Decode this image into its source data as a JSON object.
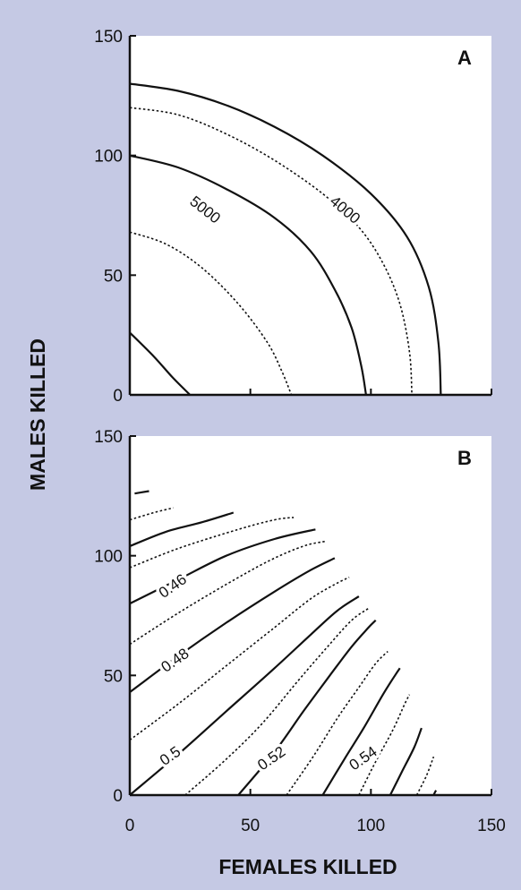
{
  "axis": {
    "xlabel": "FEMALES KILLED",
    "ylabel": "MALES KILLED"
  },
  "colors": {
    "background": "#c5c9e4",
    "plot_area": "#ffffff",
    "line": "#111111"
  },
  "chart_data": [
    {
      "type": "contour",
      "panel_label": "A",
      "xlim": [
        0,
        150
      ],
      "ylim": [
        0,
        150
      ],
      "xticks": [],
      "yticks": [
        "0",
        "50",
        "100",
        "150"
      ],
      "contour_labels": [
        {
          "text": "5000",
          "x": 31,
          "y": 77
        },
        {
          "text": "4000",
          "x": 89,
          "y": 77
        }
      ],
      "contours": [
        {
          "style": "solid",
          "points": [
            [
              0,
              130
            ],
            [
              20,
              127
            ],
            [
              40,
              121
            ],
            [
              60,
              112
            ],
            [
              80,
              100
            ],
            [
              100,
              84
            ],
            [
              115,
              66
            ],
            [
              124,
              45
            ],
            [
              128,
              22
            ],
            [
              129,
              0
            ]
          ]
        },
        {
          "style": "dotted",
          "points": [
            [
              0,
              120
            ],
            [
              20,
              117
            ],
            [
              40,
              109
            ],
            [
              60,
              98
            ],
            [
              80,
              84
            ],
            [
              95,
              70
            ],
            [
              105,
              55
            ],
            [
              112,
              38
            ],
            [
              116,
              18
            ],
            [
              117,
              0
            ]
          ]
        },
        {
          "style": "solid",
          "points": [
            [
              0,
              100
            ],
            [
              20,
              95
            ],
            [
              40,
              86
            ],
            [
              60,
              74
            ],
            [
              75,
              60
            ],
            [
              85,
              44
            ],
            [
              92,
              28
            ],
            [
              96,
              12
            ],
            [
              98,
              0
            ]
          ]
        },
        {
          "style": "dotted",
          "points": [
            [
              0,
              68
            ],
            [
              15,
              63
            ],
            [
              30,
              53
            ],
            [
              45,
              38
            ],
            [
              57,
              22
            ],
            [
              63,
              10
            ],
            [
              67,
              0
            ]
          ]
        },
        {
          "style": "solid",
          "points": [
            [
              0,
              26
            ],
            [
              10,
              16
            ],
            [
              18,
              7
            ],
            [
              25,
              0
            ]
          ]
        }
      ]
    },
    {
      "type": "contour",
      "panel_label": "B",
      "xlim": [
        0,
        150
      ],
      "ylim": [
        0,
        150
      ],
      "xticks": [
        "0",
        "50",
        "100",
        "150"
      ],
      "yticks": [
        "0",
        "50",
        "100",
        "150"
      ],
      "contour_labels": [
        {
          "text": "0.46",
          "x": 18,
          "y": 87
        },
        {
          "text": "0.48",
          "x": 19,
          "y": 56
        },
        {
          "text": "0.5",
          "x": 17,
          "y": 16
        },
        {
          "text": "0.52",
          "x": 59,
          "y": 15
        },
        {
          "text": "0.54",
          "x": 97,
          "y": 15
        }
      ],
      "contours": [
        {
          "style": "solid",
          "points": [
            [
              2,
              126
            ],
            [
              8,
              127
            ]
          ]
        },
        {
          "style": "dotted",
          "points": [
            [
              0,
              115
            ],
            [
              10,
              118
            ],
            [
              18,
              120
            ]
          ]
        },
        {
          "style": "solid",
          "points": [
            [
              0,
              104
            ],
            [
              15,
              110
            ],
            [
              30,
              114
            ],
            [
              43,
              118
            ]
          ]
        },
        {
          "style": "dotted",
          "points": [
            [
              0,
              95
            ],
            [
              20,
              103
            ],
            [
              45,
              111
            ],
            [
              60,
              115
            ],
            [
              68,
              116
            ]
          ]
        },
        {
          "style": "solid",
          "points": [
            [
              0,
              80
            ],
            [
              20,
              90
            ],
            [
              40,
              100
            ],
            [
              60,
              107
            ],
            [
              77,
              111
            ]
          ]
        },
        {
          "style": "dotted",
          "points": [
            [
              0,
              63
            ],
            [
              20,
              76
            ],
            [
              40,
              88
            ],
            [
              58,
              98
            ],
            [
              72,
              104
            ],
            [
              81,
              106
            ]
          ]
        },
        {
          "style": "solid",
          "points": [
            [
              0,
              43
            ],
            [
              20,
              58
            ],
            [
              40,
              72
            ],
            [
              60,
              85
            ],
            [
              75,
              94
            ],
            [
              85,
              99
            ]
          ]
        },
        {
          "style": "dotted",
          "points": [
            [
              0,
              23
            ],
            [
              20,
              38
            ],
            [
              40,
              54
            ],
            [
              60,
              70
            ],
            [
              75,
              82
            ],
            [
              85,
              88
            ],
            [
              91,
              91
            ]
          ]
        },
        {
          "style": "solid",
          "points": [
            [
              0,
              0
            ],
            [
              20,
              17
            ],
            [
              40,
              35
            ],
            [
              60,
              53
            ],
            [
              75,
              67
            ],
            [
              86,
              77
            ],
            [
              95,
              83
            ]
          ]
        },
        {
          "style": "dotted",
          "points": [
            [
              23,
              0
            ],
            [
              40,
              15
            ],
            [
              55,
              30
            ],
            [
              70,
              48
            ],
            [
              82,
              62
            ],
            [
              92,
              73
            ],
            [
              99,
              78
            ]
          ]
        },
        {
          "style": "solid",
          "points": [
            [
              45,
              0
            ],
            [
              60,
              18
            ],
            [
              72,
              35
            ],
            [
              83,
              50
            ],
            [
              92,
              62
            ],
            [
              99,
              70
            ],
            [
              102,
              73
            ]
          ]
        },
        {
          "style": "dotted",
          "points": [
            [
              65,
              0
            ],
            [
              76,
              16
            ],
            [
              86,
              32
            ],
            [
              95,
              45
            ],
            [
              102,
              55
            ],
            [
              107,
              60
            ]
          ]
        },
        {
          "style": "solid",
          "points": [
            [
              80,
              0
            ],
            [
              89,
              15
            ],
            [
              97,
              28
            ],
            [
              105,
              42
            ],
            [
              110,
              50
            ],
            [
              112,
              53
            ]
          ]
        },
        {
          "style": "dotted",
          "points": [
            [
              95,
              0
            ],
            [
              102,
              14
            ],
            [
              109,
              27
            ],
            [
              114,
              38
            ],
            [
              116,
              42
            ]
          ]
        },
        {
          "style": "solid",
          "points": [
            [
              108,
              0
            ],
            [
              113,
              10
            ],
            [
              118,
              20
            ],
            [
              121,
              28
            ]
          ]
        },
        {
          "style": "dotted",
          "points": [
            [
              119,
              0
            ],
            [
              123,
              8
            ],
            [
              126,
              16
            ]
          ]
        },
        {
          "style": "solid",
          "points": [
            [
              126,
              0
            ],
            [
              127,
              2
            ]
          ]
        }
      ]
    }
  ]
}
